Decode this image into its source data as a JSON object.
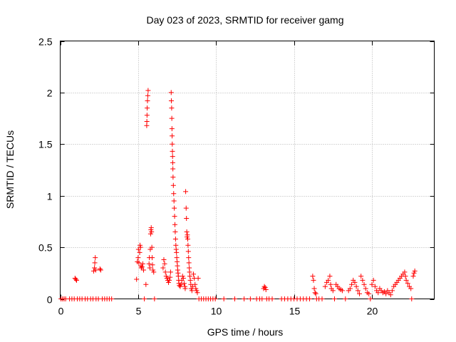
{
  "chart_data": {
    "type": "scatter",
    "title": "Day 023 of 2023, SRMTID for receiver gamg",
    "xlabel": "GPS time / hours",
    "ylabel": "SRMTID / TECUs",
    "xlim": [
      0,
      24
    ],
    "ylim": [
      0,
      2.5
    ],
    "xticks": [
      0,
      5,
      10,
      15,
      20
    ],
    "xtick_labels": [
      "0",
      "5",
      "10",
      "15",
      "20"
    ],
    "yticks": [
      0,
      0.5,
      1,
      1.5,
      2,
      2.5
    ],
    "ytick_labels": [
      "0",
      "0.5",
      "1",
      "1.5",
      "2",
      "2.5"
    ],
    "grid": true,
    "marker": "+",
    "color": "#ff0000",
    "series": [
      {
        "name": "SRMTID",
        "points": [
          [
            0.05,
            0
          ],
          [
            0.15,
            0
          ],
          [
            0.25,
            0
          ],
          [
            0.35,
            0
          ],
          [
            0.6,
            0
          ],
          [
            0.75,
            0
          ],
          [
            0.9,
            0
          ],
          [
            0.95,
            0.2
          ],
          [
            1.0,
            0.19
          ],
          [
            1.05,
            0.18
          ],
          [
            1.1,
            0
          ],
          [
            1.25,
            0
          ],
          [
            1.4,
            0
          ],
          [
            1.6,
            0
          ],
          [
            1.75,
            0
          ],
          [
            1.95,
            0
          ],
          [
            2.1,
            0
          ],
          [
            2.15,
            0.27
          ],
          [
            2.2,
            0.3
          ],
          [
            2.22,
            0.35
          ],
          [
            2.25,
            0.4
          ],
          [
            2.28,
            0.28
          ],
          [
            2.3,
            0
          ],
          [
            2.45,
            0
          ],
          [
            2.55,
            0.29
          ],
          [
            2.6,
            0.28
          ],
          [
            2.7,
            0
          ],
          [
            2.85,
            0
          ],
          [
            3.0,
            0
          ],
          [
            3.15,
            0
          ],
          [
            3.3,
            0
          ],
          [
            4.9,
            0.19
          ],
          [
            4.95,
            0.36
          ],
          [
            5.0,
            0.4
          ],
          [
            5.02,
            0.48
          ],
          [
            5.05,
            0.35
          ],
          [
            5.1,
            0.45
          ],
          [
            5.12,
            0.52
          ],
          [
            5.15,
            0.5
          ],
          [
            5.18,
            0.32
          ],
          [
            5.2,
            0.3
          ],
          [
            5.25,
            0.31
          ],
          [
            5.3,
            0.34
          ],
          [
            5.35,
            0.28
          ],
          [
            5.4,
            0
          ],
          [
            5.5,
            0.14
          ],
          [
            5.55,
            1.68
          ],
          [
            5.56,
            1.72
          ],
          [
            5.57,
            1.78
          ],
          [
            5.58,
            1.85
          ],
          [
            5.6,
            1.92
          ],
          [
            5.62,
            1.97
          ],
          [
            5.64,
            2.02
          ],
          [
            5.7,
            0.34
          ],
          [
            5.72,
            0.4
          ],
          [
            5.75,
            0.3
          ],
          [
            5.78,
            0.48
          ],
          [
            5.8,
            0.63
          ],
          [
            5.82,
            0.67
          ],
          [
            5.84,
            0.69
          ],
          [
            5.86,
            0.65
          ],
          [
            5.88,
            0.5
          ],
          [
            5.9,
            0.4
          ],
          [
            5.92,
            0.33
          ],
          [
            5.95,
            0.28
          ],
          [
            6.0,
            0.26
          ],
          [
            6.05,
            0
          ],
          [
            6.6,
            0.3
          ],
          [
            6.65,
            0.38
          ],
          [
            6.7,
            0.34
          ],
          [
            6.75,
            0.26
          ],
          [
            6.8,
            0.22
          ],
          [
            6.85,
            0.2
          ],
          [
            6.9,
            0.18
          ],
          [
            6.95,
            0.16
          ],
          [
            7.0,
            0.18
          ],
          [
            7.05,
            0.21
          ],
          [
            7.08,
            0.26
          ],
          [
            7.12,
            2.0
          ],
          [
            7.13,
            1.92
          ],
          [
            7.15,
            1.85
          ],
          [
            7.16,
            1.75
          ],
          [
            7.17,
            1.65
          ],
          [
            7.18,
            1.58
          ],
          [
            7.19,
            1.5
          ],
          [
            7.2,
            1.43
          ],
          [
            7.21,
            1.38
          ],
          [
            7.22,
            1.32
          ],
          [
            7.23,
            1.26
          ],
          [
            7.24,
            1.18
          ],
          [
            7.26,
            1.1
          ],
          [
            7.28,
            1.02
          ],
          [
            7.3,
            0.95
          ],
          [
            7.32,
            0.88
          ],
          [
            7.34,
            0.8
          ],
          [
            7.36,
            0.72
          ],
          [
            7.38,
            0.65
          ],
          [
            7.4,
            0.58
          ],
          [
            7.42,
            0.52
          ],
          [
            7.44,
            0.48
          ],
          [
            7.46,
            0.45
          ],
          [
            7.48,
            0.4
          ],
          [
            7.5,
            0.36
          ],
          [
            7.52,
            0.32
          ],
          [
            7.54,
            0.28
          ],
          [
            7.56,
            0.25
          ],
          [
            7.58,
            0.22
          ],
          [
            7.6,
            0.18
          ],
          [
            7.62,
            0.15
          ],
          [
            7.65,
            0.13
          ],
          [
            7.7,
            0.12
          ],
          [
            7.75,
            0.14
          ],
          [
            7.8,
            0.18
          ],
          [
            7.85,
            0.22
          ],
          [
            7.9,
            0.2
          ],
          [
            7.95,
            0.15
          ],
          [
            8.0,
            0.12
          ],
          [
            8.02,
            0.1
          ],
          [
            8.05,
            1.04
          ],
          [
            8.08,
            0.88
          ],
          [
            8.1,
            0.78
          ],
          [
            8.12,
            0.65
          ],
          [
            8.14,
            0.6
          ],
          [
            8.16,
            0.62
          ],
          [
            8.18,
            0.58
          ],
          [
            8.2,
            0.52
          ],
          [
            8.22,
            0.46
          ],
          [
            8.24,
            0.4
          ],
          [
            8.26,
            0.35
          ],
          [
            8.28,
            0.3
          ],
          [
            8.3,
            0.26
          ],
          [
            8.32,
            0.22
          ],
          [
            8.35,
            0.18
          ],
          [
            8.38,
            0.14
          ],
          [
            8.4,
            0.1
          ],
          [
            8.45,
            0.08
          ],
          [
            8.5,
            0.12
          ],
          [
            8.55,
            0.24
          ],
          [
            8.6,
            0.2
          ],
          [
            8.65,
            0.14
          ],
          [
            8.7,
            0.1
          ],
          [
            8.75,
            0.08
          ],
          [
            8.8,
            0.06
          ],
          [
            8.85,
            0.2
          ],
          [
            8.9,
            0
          ],
          [
            9.05,
            0
          ],
          [
            9.2,
            0
          ],
          [
            9.35,
            0
          ],
          [
            9.5,
            0
          ],
          [
            9.65,
            0
          ],
          [
            9.8,
            0
          ],
          [
            9.95,
            0
          ],
          [
            10.5,
            0
          ],
          [
            11.2,
            0
          ],
          [
            11.8,
            0
          ],
          [
            12.2,
            0
          ],
          [
            12.6,
            0
          ],
          [
            12.8,
            0
          ],
          [
            12.95,
            0
          ],
          [
            13.05,
            0.1
          ],
          [
            13.1,
            0.12
          ],
          [
            13.15,
            0.11
          ],
          [
            13.2,
            0.09
          ],
          [
            13.25,
            0
          ],
          [
            13.4,
            0
          ],
          [
            13.6,
            0
          ],
          [
            14.2,
            0
          ],
          [
            14.4,
            0
          ],
          [
            14.6,
            0
          ],
          [
            14.8,
            0
          ],
          [
            15.0,
            0
          ],
          [
            15.2,
            0
          ],
          [
            15.4,
            0
          ],
          [
            15.6,
            0
          ],
          [
            15.8,
            0
          ],
          [
            16.0,
            0
          ],
          [
            16.2,
            0.22
          ],
          [
            16.25,
            0.18
          ],
          [
            16.3,
            0.1
          ],
          [
            16.35,
            0.06
          ],
          [
            16.4,
            0.05
          ],
          [
            16.45,
            0
          ],
          [
            16.6,
            0
          ],
          [
            16.8,
            0
          ],
          [
            17.0,
            0.12
          ],
          [
            17.1,
            0.16
          ],
          [
            17.2,
            0.18
          ],
          [
            17.3,
            0.22
          ],
          [
            17.35,
            0.14
          ],
          [
            17.4,
            0.1
          ],
          [
            17.5,
            0.08
          ],
          [
            17.6,
            0
          ],
          [
            17.7,
            0.14
          ],
          [
            17.8,
            0.12
          ],
          [
            17.9,
            0.1
          ],
          [
            18.0,
            0.09
          ],
          [
            18.1,
            0.08
          ],
          [
            18.3,
            0
          ],
          [
            18.5,
            0.08
          ],
          [
            18.6,
            0.1
          ],
          [
            18.7,
            0.14
          ],
          [
            18.8,
            0.18
          ],
          [
            18.9,
            0.16
          ],
          [
            19.0,
            0.12
          ],
          [
            19.1,
            0.08
          ],
          [
            19.2,
            0.05
          ],
          [
            19.3,
            0.22
          ],
          [
            19.4,
            0.18
          ],
          [
            19.5,
            0.14
          ],
          [
            19.6,
            0.1
          ],
          [
            19.7,
            0.06
          ],
          [
            19.8,
            0.05
          ],
          [
            19.9,
            0
          ],
          [
            20.0,
            0.14
          ],
          [
            20.1,
            0.18
          ],
          [
            20.2,
            0.12
          ],
          [
            20.3,
            0.08
          ],
          [
            20.4,
            0.06
          ],
          [
            20.5,
            0.1
          ],
          [
            20.6,
            0.08
          ],
          [
            20.7,
            0.06
          ],
          [
            20.8,
            0.07
          ],
          [
            20.9,
            0.05
          ],
          [
            21.0,
            0.08
          ],
          [
            21.1,
            0.06
          ],
          [
            21.2,
            0.04
          ],
          [
            21.3,
            0.08
          ],
          [
            21.4,
            0.12
          ],
          [
            21.5,
            0.14
          ],
          [
            21.6,
            0.16
          ],
          [
            21.7,
            0.18
          ],
          [
            21.8,
            0.2
          ],
          [
            21.9,
            0.22
          ],
          [
            22.0,
            0.24
          ],
          [
            22.1,
            0.26
          ],
          [
            22.15,
            0.22
          ],
          [
            22.2,
            0.18
          ],
          [
            22.3,
            0.15
          ],
          [
            22.4,
            0.12
          ],
          [
            22.5,
            0.1
          ],
          [
            22.55,
            0
          ],
          [
            22.65,
            0.22
          ],
          [
            22.7,
            0.25
          ],
          [
            22.75,
            0.27
          ]
        ]
      }
    ]
  }
}
